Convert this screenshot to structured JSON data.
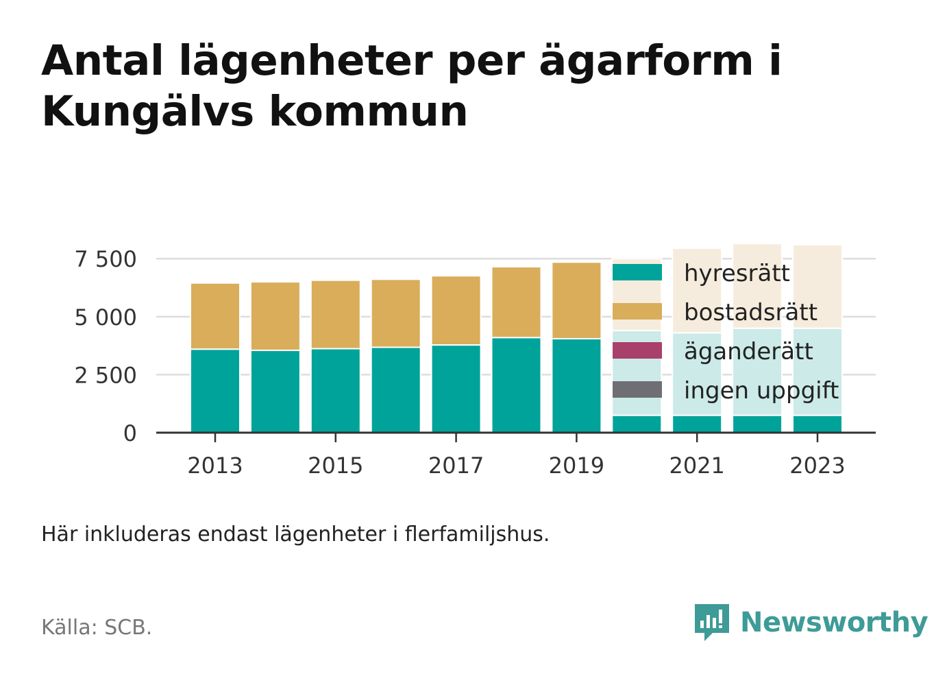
{
  "title": "Antal lägenheter per ägarform i Kungälvs kommun",
  "note": "Här inkluderas endast lägenheter i flerfamiljshus.",
  "source": "Källa: SCB.",
  "brand": {
    "name": "Newsworthy",
    "icon": "newsworthy-logo-icon",
    "color": "#3e9b97"
  },
  "colors": {
    "hyresratt": "#00a39a",
    "bostadsratt": "#d9ad5a",
    "aganderatt": "#a8406a",
    "ingen_uppgift": "#6e6e73",
    "axis": "#333333",
    "grid": "#dddddd"
  },
  "chart_data": {
    "type": "bar",
    "stacked": true,
    "x": [
      2013,
      2014,
      2015,
      2016,
      2017,
      2018,
      2019,
      2020,
      2021,
      2022,
      2023
    ],
    "x_tick_labels": [
      "2013",
      "2015",
      "2017",
      "2019",
      "2021",
      "2023"
    ],
    "y_tick_labels": [
      "0",
      "2 500",
      "5 000",
      "7 500"
    ],
    "y_ticks": [
      0,
      2500,
      5000,
      7500
    ],
    "ylim": [
      0,
      8600
    ],
    "grid": true,
    "legend_position": "top-right",
    "series": [
      {
        "name": "hyresrätt",
        "color": "#00a39a",
        "values": [
          3600,
          3550,
          3620,
          3680,
          3780,
          4100,
          4050,
          750,
          750,
          750,
          750
        ]
      },
      {
        "name": "bostadsrätt",
        "color": "#d9ad5a",
        "values": [
          2850,
          2950,
          2950,
          2930,
          2980,
          3050,
          3300,
          50,
          50,
          50,
          340
        ]
      },
      {
        "name": "äganderätt",
        "color": "#a8406a",
        "values": [
          0,
          0,
          0,
          0,
          0,
          0,
          0,
          0,
          0,
          0,
          0
        ]
      },
      {
        "name": "ingen uppgift",
        "color": "#6e6e73",
        "values": [
          0,
          0,
          0,
          0,
          0,
          0,
          0,
          0,
          0,
          0,
          0
        ]
      }
    ],
    "faded_overlay": {
      "note": "pale extension of bars behind legend",
      "hyresratt_top": [
        null,
        null,
        null,
        null,
        null,
        null,
        null,
        4400,
        4300,
        4500,
        4500
      ],
      "bostadsratt_top": [
        null,
        null,
        null,
        null,
        null,
        null,
        null,
        7500,
        7950,
        8150,
        8100
      ]
    }
  }
}
